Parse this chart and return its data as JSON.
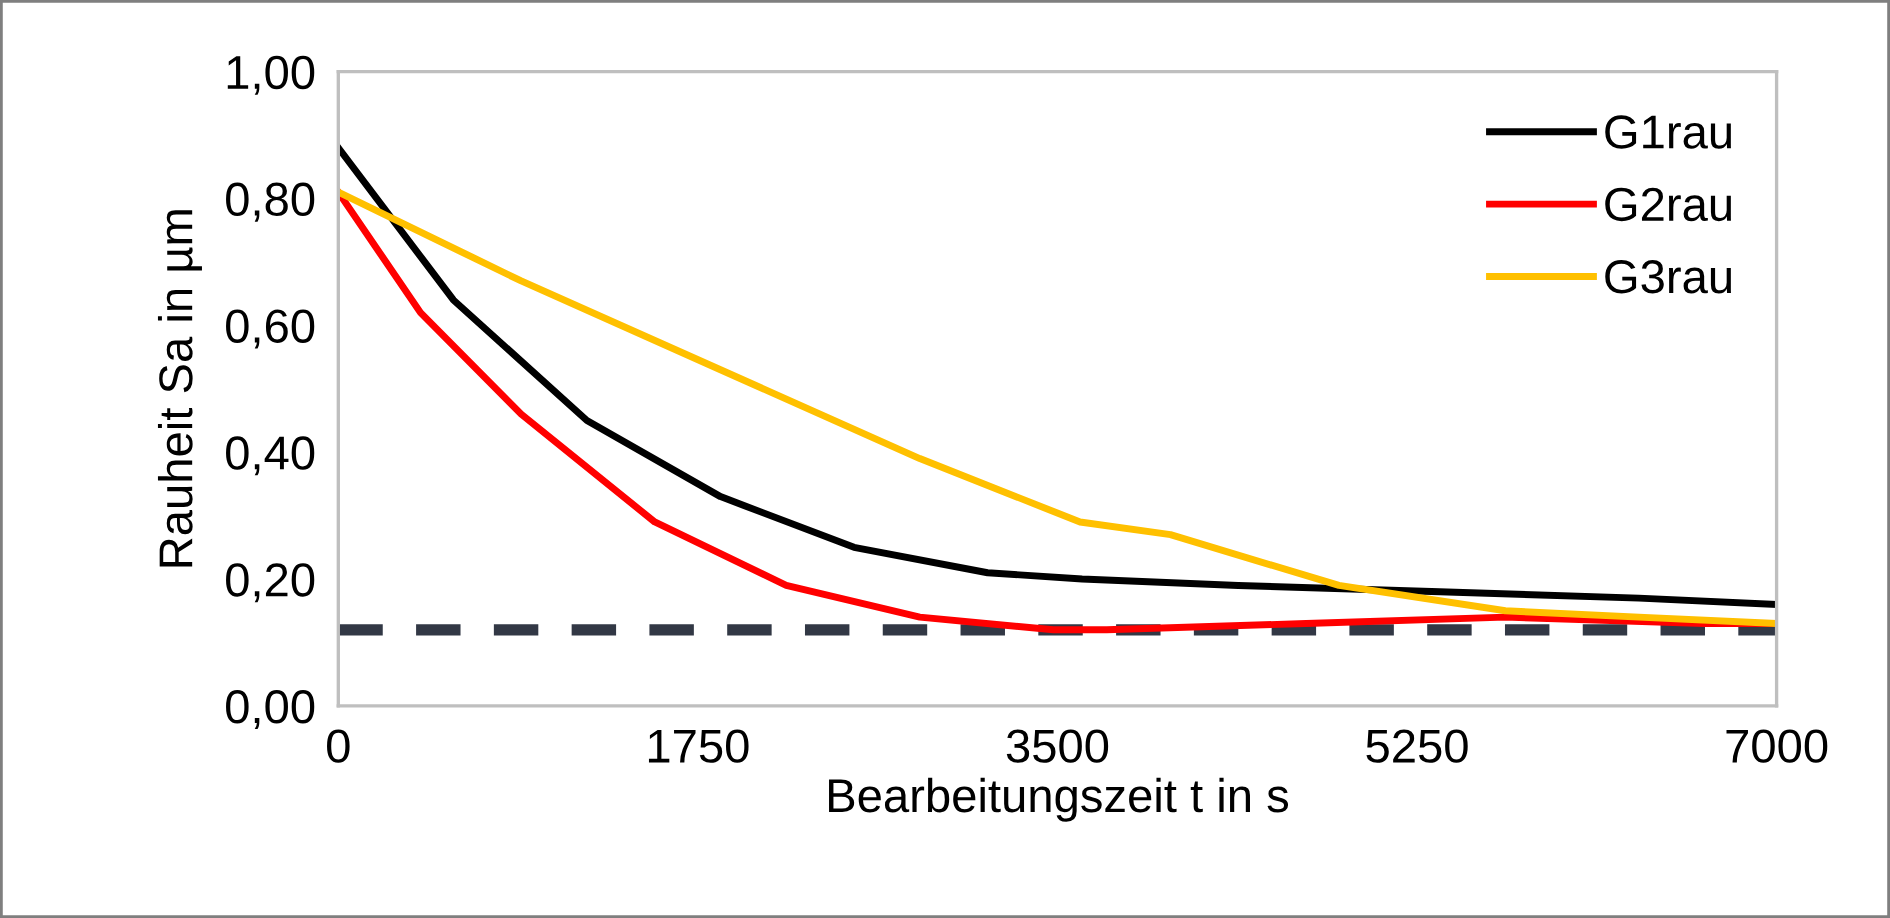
{
  "chart_data": {
    "type": "line",
    "xlabel": "Bearbeitungszeit t in s",
    "ylabel": "Rauheit Sa in µm",
    "xlim": [
      0,
      7000
    ],
    "xticks": [
      0,
      1750,
      3500,
      5250,
      7000
    ],
    "ylim": [
      0,
      1
    ],
    "yticks": [
      {
        "value": 0,
        "label": "0,00"
      },
      {
        "value": 0.2,
        "label": "0,20"
      },
      {
        "value": 0.4,
        "label": "0,40"
      },
      {
        "value": 0.6,
        "label": "0,60"
      },
      {
        "value": 0.8,
        "label": "0,80"
      },
      {
        "value": 1,
        "label": "1,00"
      }
    ],
    "grid": false,
    "legend": "top right",
    "series": [
      {
        "name": "G1rau",
        "color": "#000000",
        "x": [
          0,
          560,
          1210,
          1860,
          2510,
          3160,
          3620,
          4380,
          5360,
          6330,
          7000
        ],
        "values": [
          0.88,
          0.64,
          0.45,
          0.33,
          0.25,
          0.21,
          0.2,
          0.19,
          0.18,
          0.17,
          0.16
        ]
      },
      {
        "name": "G2rau",
        "color": "#ff0000",
        "x": [
          0,
          400,
          890,
          1540,
          2180,
          2830,
          3480,
          3740,
          4710,
          5680,
          6650,
          7000
        ],
        "values": [
          0.81,
          0.62,
          0.46,
          0.29,
          0.19,
          0.14,
          0.12,
          0.12,
          0.13,
          0.14,
          0.13,
          0.13
        ]
      },
      {
        "name": "G3rau",
        "color": "#ffc000",
        "x": [
          0,
          890,
          1860,
          2830,
          3610,
          4050,
          4870,
          5680,
          6330,
          7000
        ],
        "values": [
          0.81,
          0.67,
          0.53,
          0.39,
          0.29,
          0.27,
          0.19,
          0.15,
          0.14,
          0.13
        ]
      }
    ],
    "ref_lines": [
      {
        "axis": "y",
        "value": 0.12,
        "color": "#323845",
        "line_style": "dashed"
      }
    ]
  }
}
